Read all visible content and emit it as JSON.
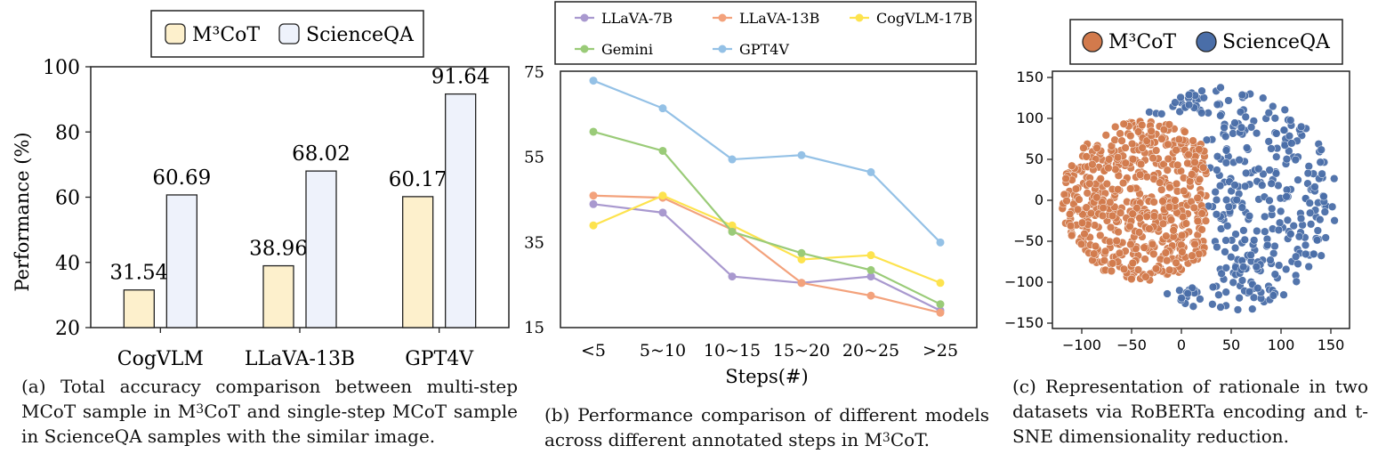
{
  "colors": {
    "m3cot_fill": "#fdf0cc",
    "scienceqa_fill": "#eef2fb",
    "llava7b": "#a999cf",
    "llava13b": "#f3a27c",
    "cogvlm17b": "#fde34e",
    "gemini": "#9acb78",
    "gpt4v": "#94c1e6",
    "m3cot_dot": "#d27a4c",
    "scienceqa_dot": "#4a6ea8"
  },
  "captions": {
    "a_pre": "(a) Total accuracy comparison between multi-step MCoT sample in M",
    "a_sup": "3",
    "a_post": "CoT and single-step MCoT sample in ScienceQA samples with the similar image.",
    "b_pre": "(b) Performance comparison of different models across different annotated steps in M",
    "b_sup": "3",
    "b_post": "CoT.",
    "c": "(c) Representation of rationale in two datasets via RoBERTa encoding and t-SNE dimensionality reduction."
  },
  "chart_data": [
    {
      "type": "bar",
      "categories": [
        "CogVLM",
        "LLaVA-13B",
        "GPT4V"
      ],
      "series": [
        {
          "name": "M³CoT",
          "values": [
            31.54,
            38.96,
            60.17
          ]
        },
        {
          "name": "ScienceQA",
          "values": [
            60.69,
            68.02,
            91.64
          ]
        }
      ],
      "data_labels": [
        [
          "31.54",
          "60.69"
        ],
        [
          "38.96",
          "68.02"
        ],
        [
          "60.17",
          "91.64"
        ]
      ],
      "ylabel": "Performance (%)",
      "ylim": [
        20,
        100
      ],
      "yticks": [
        "20",
        "40",
        "60",
        "80",
        "100"
      ],
      "grid": false,
      "legend_placement": "top"
    },
    {
      "type": "line",
      "categories": [
        "<5",
        "5~10",
        "10~15",
        "15~20",
        "20~25",
        ">25"
      ],
      "xlabel": "Steps(#)",
      "ylim": [
        15,
        75
      ],
      "yticks": [
        "15",
        "35",
        "55",
        "75"
      ],
      "grid": false,
      "legend_placement": "top",
      "series": [
        {
          "name": "LLaVA-7B",
          "values": [
            44,
            42,
            27,
            25.5,
            27,
            19
          ]
        },
        {
          "name": "LLaVA-13B",
          "values": [
            46,
            45.5,
            38,
            25.5,
            22.5,
            18.5
          ]
        },
        {
          "name": "CogVLM-17B",
          "values": [
            39,
            46,
            39,
            31,
            32,
            25.5
          ]
        },
        {
          "name": "Gemini",
          "values": [
            61,
            56.5,
            37.5,
            32.5,
            28.5,
            20.5
          ]
        },
        {
          "name": "GPT4V",
          "values": [
            73,
            66.5,
            54.5,
            55.5,
            51.5,
            35
          ]
        }
      ]
    },
    {
      "type": "scatter",
      "xlim": [
        -120,
        160
      ],
      "ylim": [
        -160,
        150
      ],
      "xticks": [
        "−100",
        "−50",
        "0",
        "50",
        "100",
        "150"
      ],
      "yticks": [
        "−150",
        "−100",
        "−50",
        "0",
        "50",
        "100",
        "150"
      ],
      "grid": false,
      "legend_placement": "top",
      "series": [
        {
          "name": "M³CoT",
          "region": {
            "center": [
              -25,
              0
            ],
            "spread": [
              45,
              52
            ],
            "x_range": [
              -120,
              30
            ],
            "y_range": [
              -120,
              100
            ]
          }
        },
        {
          "name": "ScienceQA",
          "region": {
            "center": [
              60,
              0
            ],
            "spread": [
              48,
              55
            ],
            "x_range": [
              -80,
              160
            ],
            "y_range": [
              -150,
              145
            ]
          }
        }
      ]
    }
  ]
}
